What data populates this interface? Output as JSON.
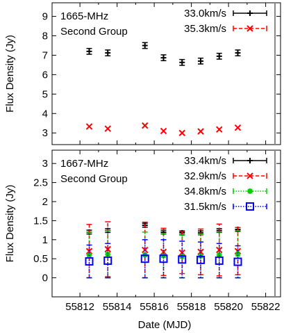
{
  "xlabel": "Date (MJD)",
  "x_ticks": [
    55812,
    55814,
    55816,
    55818,
    55820,
    55822
  ],
  "xlim": [
    55810.5,
    55822.8
  ],
  "vline_x": 55822.5,
  "chart_data": [
    {
      "type": "scatter",
      "panel_title": [
        "1665-MHz",
        "Second Group"
      ],
      "ylabel": "Flux Density (Jy)",
      "ylim": [
        2.4,
        9.7
      ],
      "y_ticks": [
        3,
        4,
        5,
        6,
        7,
        8,
        9
      ],
      "x": [
        55812.5,
        55813.5,
        55815.5,
        55816.5,
        55817.5,
        55818.5,
        55819.5,
        55820.5
      ],
      "series": [
        {
          "name": "33.0km/s",
          "marker": "plus",
          "color": "#000000",
          "line": "solid",
          "values": [
            7.2,
            7.12,
            7.5,
            6.87,
            6.63,
            6.7,
            6.95,
            7.12
          ],
          "err": [
            0.15,
            0.15,
            0.15,
            0.15,
            0.15,
            0.15,
            0.15,
            0.15
          ]
        },
        {
          "name": "35.3km/s",
          "marker": "x",
          "color": "#ff0000",
          "line": "dashed",
          "values": [
            3.33,
            3.22,
            3.38,
            3.1,
            3.0,
            3.08,
            3.18,
            3.27
          ],
          "err": [
            0,
            0,
            0,
            0,
            0,
            0,
            0,
            0
          ]
        }
      ]
    },
    {
      "type": "scatter",
      "panel_title": [
        "1667-MHz",
        "Second Group"
      ],
      "ylabel": "Flux Density (Jy)",
      "ylim": [
        -0.5,
        3.35
      ],
      "y_ticks": [
        0,
        0.5,
        1,
        1.5,
        2,
        2.5,
        3
      ],
      "x": [
        55812.5,
        55813.5,
        55815.5,
        55816.5,
        55817.5,
        55818.5,
        55819.5,
        55820.5
      ],
      "series": [
        {
          "name": "33.4km/s",
          "marker": "plus",
          "color": "#000000",
          "line": "solid",
          "values": [
            1.2,
            1.24,
            1.38,
            1.2,
            1.18,
            1.18,
            1.24,
            1.27
          ],
          "err": [
            0.05,
            0.05,
            0.05,
            0.05,
            0.05,
            0.05,
            0.05,
            0.05
          ]
        },
        {
          "name": "32.9km/s",
          "marker": "x",
          "color": "#ff0000",
          "line": "dashed",
          "values": [
            0.7,
            0.75,
            0.73,
            0.68,
            0.66,
            0.68,
            0.73,
            0.7
          ],
          "err": [
            0.7,
            0.72,
            0.73,
            0.62,
            0.55,
            0.6,
            0.68,
            0.62
          ]
        },
        {
          "name": "34.8km/s",
          "marker": "star",
          "color": "#00cc00",
          "line": "dotted",
          "values": [
            0.6,
            0.62,
            0.6,
            0.58,
            0.56,
            0.57,
            0.6,
            0.62
          ],
          "err": [
            0.6,
            0.62,
            0.6,
            0.58,
            0.56,
            0.57,
            0.6,
            0.62
          ]
        },
        {
          "name": "31.5km/s",
          "marker": "square",
          "color": "#0000ff",
          "line": "dotted",
          "values": [
            0.43,
            0.45,
            0.5,
            0.5,
            0.48,
            0.47,
            0.45,
            0.42
          ],
          "err": [
            0.43,
            0.45,
            0.5,
            0.5,
            0.48,
            0.47,
            0.45,
            0.42
          ]
        }
      ]
    }
  ]
}
